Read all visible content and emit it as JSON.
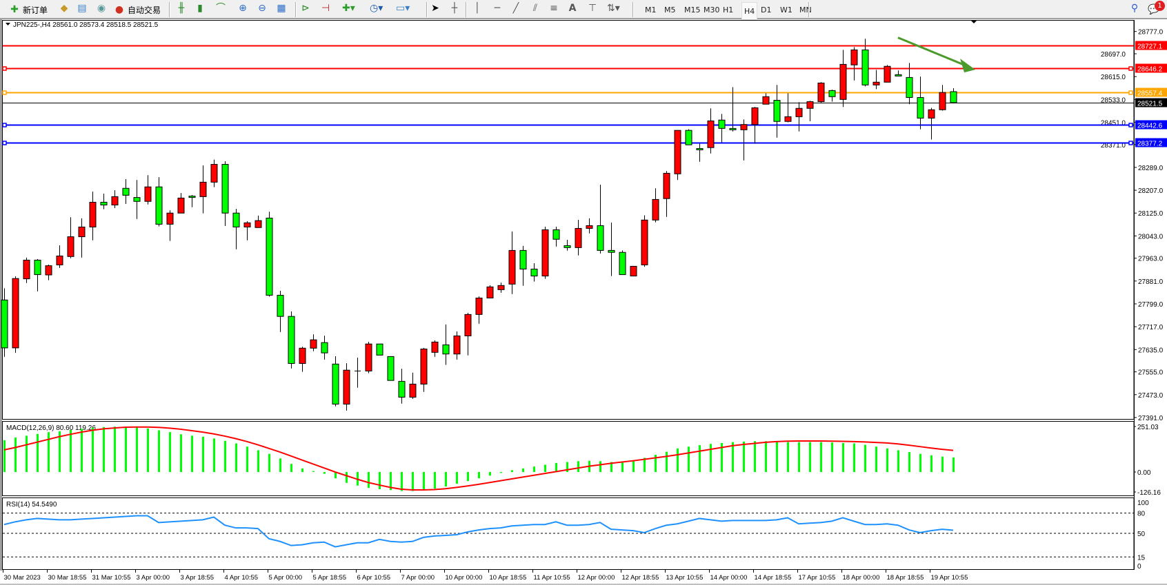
{
  "toolbar": {
    "new_order_label": "新订单",
    "auto_trading_label": "自动交易",
    "timeframes": [
      "M1",
      "M5",
      "M15",
      "M30",
      "H1",
      "H4",
      "D1",
      "W1",
      "MN"
    ],
    "active_timeframe": "H4",
    "notification_count": "1",
    "icons": [
      "new-order-icon",
      "gold-icon",
      "market-watch-icon",
      "signals-icon",
      "auto-trading-icon",
      "bar-chart-icon",
      "candlestick-icon",
      "line-chart-icon",
      "zoom-in-icon",
      "zoom-out-icon",
      "tile-windows-icon",
      "autoscroll-icon",
      "chart-shift-icon",
      "indicators-icon",
      "periods-icon",
      "templates-icon",
      "cursor-icon",
      "crosshair-icon",
      "vertical-line-icon",
      "horizontal-line-icon",
      "trendline-icon",
      "equidistant-channel-icon",
      "fibonacci-icon",
      "text-icon",
      "text-label-icon",
      "arrows-icon",
      "search-icon",
      "chat-icon"
    ]
  },
  "chart_header": "JPN225-,H4  28561.0 28573.4 28518.5 28521.5",
  "colors": {
    "bull": "#ff0000",
    "bear": "#00ff00",
    "resistance": "#ff0000",
    "pivot": "#ffa500",
    "support": "#0000ff",
    "current": "#000000",
    "macd_hist": "#00ff00",
    "macd_signal": "#ff0000",
    "rsi": "#1e90ff",
    "arrow": "#4c9a2a"
  },
  "chart_data": {
    "type": "candlestick",
    "symbol": "JPN225-",
    "timeframe": "H4",
    "ylim": [
      27391.0,
      28777.0
    ],
    "y_tick_labels": [
      "28777.0",
      "28697.0",
      "28615.0",
      "28533.0",
      "28451.0",
      "28371.0",
      "28289.0",
      "28207.0",
      "28125.0",
      "28043.0",
      "27963.0",
      "27881.0",
      "27799.0",
      "27717.0",
      "27635.0",
      "27555.0",
      "27473.0",
      "27391.0"
    ],
    "x_tick_labels": [
      {
        "bar": 0,
        "label": "30 Mar 2023"
      },
      {
        "bar": 4,
        "label": "30 Mar 18:55"
      },
      {
        "bar": 8,
        "label": "31 Mar 10:55"
      },
      {
        "bar": 12,
        "label": "3 Apr 00:00"
      },
      {
        "bar": 16,
        "label": "3 Apr 18:55"
      },
      {
        "bar": 20,
        "label": "4 Apr 10:55"
      },
      {
        "bar": 24,
        "label": "5 Apr 00:00"
      },
      {
        "bar": 28,
        "label": "5 Apr 18:55"
      },
      {
        "bar": 32,
        "label": "6 Apr 10:55"
      },
      {
        "bar": 36,
        "label": "7 Apr 00:00"
      },
      {
        "bar": 40,
        "label": "10 Apr 00:00"
      },
      {
        "bar": 44,
        "label": "10 Apr 18:55"
      },
      {
        "bar": 48,
        "label": "11 Apr 10:55"
      },
      {
        "bar": 52,
        "label": "12 Apr 00:00"
      },
      {
        "bar": 56,
        "label": "12 Apr 18:55"
      },
      {
        "bar": 60,
        "label": "13 Apr 10:55"
      },
      {
        "bar": 64,
        "label": "14 Apr 00:00"
      },
      {
        "bar": 68,
        "label": "14 Apr 18:55"
      },
      {
        "bar": 72,
        "label": "17 Apr 10:55"
      },
      {
        "bar": 76,
        "label": "18 Apr 00:00"
      },
      {
        "bar": 80,
        "label": "18 Apr 18:55"
      },
      {
        "bar": 84,
        "label": "19 Apr 10:55"
      }
    ],
    "ohlc": [
      [
        27813,
        27855,
        27609,
        27641
      ],
      [
        27641,
        27898,
        27623,
        27890
      ],
      [
        27889,
        27965,
        27874,
        27956
      ],
      [
        27956,
        27960,
        27844,
        27904
      ],
      [
        27903,
        27940,
        27884,
        27936
      ],
      [
        27939,
        28009,
        27928,
        27971
      ],
      [
        27969,
        28110,
        27963,
        28040
      ],
      [
        28040,
        28106,
        27965,
        28075
      ],
      [
        28075,
        28202,
        28027,
        28164
      ],
      [
        28164,
        28195,
        28139,
        28154
      ],
      [
        28154,
        28207,
        28143,
        28184
      ],
      [
        28214,
        28247,
        28158,
        28189
      ],
      [
        28181,
        28244,
        28104,
        28167
      ],
      [
        28167,
        28261,
        28156,
        28219
      ],
      [
        28219,
        28254,
        28077,
        28085
      ],
      [
        28085,
        28135,
        28025,
        28125
      ],
      [
        28125,
        28197,
        28125,
        28179
      ],
      [
        28186,
        28190,
        28146,
        28181
      ],
      [
        28184,
        28296,
        28124,
        28236
      ],
      [
        28236,
        28317,
        28218,
        28300
      ],
      [
        28300,
        28311,
        28079,
        28125
      ],
      [
        28125,
        28140,
        27995,
        28075
      ],
      [
        28075,
        28096,
        28027,
        28090
      ],
      [
        28073,
        28116,
        28073,
        28098
      ],
      [
        28107,
        28130,
        27825,
        27830
      ],
      [
        27830,
        27846,
        27698,
        27754
      ],
      [
        27754,
        27772,
        27567,
        27585
      ],
      [
        27585,
        27645,
        27555,
        27640
      ],
      [
        27640,
        27690,
        27629,
        27670
      ],
      [
        27660,
        27685,
        27599,
        27623
      ],
      [
        27583,
        27611,
        27431,
        27439
      ],
      [
        27439,
        27586,
        27416,
        27561
      ],
      [
        27558,
        27606,
        27498,
        27558
      ],
      [
        27558,
        27663,
        27550,
        27655
      ],
      [
        27655,
        27655,
        27615,
        27615
      ],
      [
        27610,
        27610,
        27524,
        27524
      ],
      [
        27521,
        27566,
        27441,
        27464
      ],
      [
        27464,
        27552,
        27458,
        27511
      ],
      [
        27511,
        27641,
        27483,
        27637
      ],
      [
        27625,
        27668,
        27609,
        27662
      ],
      [
        27652,
        27725,
        27580,
        27619
      ],
      [
        27619,
        27700,
        27599,
        27684
      ],
      [
        27684,
        27767,
        27614,
        27761
      ],
      [
        27761,
        27826,
        27728,
        27820
      ],
      [
        27820,
        27866,
        27820,
        27860
      ],
      [
        27850,
        27875,
        27839,
        27865
      ],
      [
        27870,
        28059,
        27834,
        27991
      ],
      [
        27991,
        28007,
        27864,
        27924
      ],
      [
        27924,
        27945,
        27879,
        27899
      ],
      [
        27899,
        28076,
        27889,
        28065
      ],
      [
        28065,
        28076,
        28005,
        28031
      ],
      [
        28008,
        28029,
        27990,
        28001
      ],
      [
        28001,
        28101,
        27973,
        28070
      ],
      [
        28070,
        28106,
        28052,
        28080
      ],
      [
        28080,
        28227,
        27980,
        27991
      ],
      [
        27991,
        28091,
        27899,
        27984
      ],
      [
        27984,
        27991,
        27904,
        27904
      ],
      [
        27899,
        27934,
        27899,
        27934
      ],
      [
        27939,
        28117,
        27932,
        28100
      ],
      [
        28100,
        28214,
        28092,
        28174
      ],
      [
        28177,
        28276,
        28111,
        28268
      ],
      [
        28266,
        28422,
        28244,
        28422
      ],
      [
        28422,
        28426,
        28370,
        28370
      ],
      [
        28357,
        28374,
        28309,
        28352
      ],
      [
        28360,
        28501,
        28339,
        28456
      ],
      [
        28459,
        28481,
        28379,
        28429
      ],
      [
        28429,
        28577,
        28418,
        28424
      ],
      [
        28424,
        28461,
        28314,
        28443
      ],
      [
        28443,
        28506,
        28374,
        28503
      ],
      [
        28516,
        28555,
        28516,
        28543
      ],
      [
        28530,
        28585,
        28396,
        28454
      ],
      [
        28454,
        28555,
        28451,
        28471
      ],
      [
        28471,
        28523,
        28418,
        28501
      ],
      [
        28501,
        28528,
        28455,
        28525
      ],
      [
        28525,
        28595,
        28521,
        28592
      ],
      [
        28565,
        28568,
        28525,
        28543
      ],
      [
        28533,
        28711,
        28506,
        28659
      ],
      [
        28657,
        28721,
        28601,
        28711
      ],
      [
        28711,
        28751,
        28580,
        28585
      ],
      [
        28585,
        28639,
        28570,
        28595
      ],
      [
        28595,
        28657,
        28595,
        28652
      ],
      [
        28622,
        28637,
        28617,
        28617
      ],
      [
        28612,
        28664,
        28516,
        28540
      ],
      [
        28540,
        28615,
        28426,
        28466
      ],
      [
        28466,
        28503,
        28389,
        28496
      ],
      [
        28496,
        28585,
        28493,
        28558
      ],
      [
        28561.0,
        28573.4,
        28518.5,
        28521.5
      ]
    ],
    "horizontal_lines": [
      {
        "price": 28727.1,
        "label": "28727.1",
        "role": "resistance"
      },
      {
        "price": 28646.2,
        "label": "28646.2",
        "role": "resistance"
      },
      {
        "price": 28557.4,
        "label": "28557.4",
        "role": "pivot"
      },
      {
        "price": 28521.5,
        "label": "28521.5",
        "role": "current"
      },
      {
        "price": 28442.6,
        "label": "28442.6",
        "role": "support"
      },
      {
        "price": 28377.2,
        "label": "28377.2",
        "role": "support"
      }
    ],
    "annotation": {
      "type": "arrow",
      "direction": "down-right",
      "from_bar": 81,
      "to_bar": 88,
      "from_price": 28755,
      "to_price": 28640
    },
    "macd": {
      "label": "MACD(12,26,9) 80.60 119.26",
      "ylim": [
        -126.16,
        251.03
      ],
      "tick_labels": [
        "251.03",
        "0.00",
        "-126.16"
      ],
      "histogram": [
        175,
        190,
        200,
        210,
        220,
        225,
        232,
        238,
        245,
        248,
        250,
        250,
        248,
        240,
        230,
        220,
        208,
        200,
        195,
        185,
        172,
        158,
        140,
        120,
        100,
        75,
        45,
        20,
        5,
        -10,
        -35,
        -60,
        -75,
        -88,
        -95,
        -100,
        -105,
        -105,
        -100,
        -92,
        -80,
        -65,
        -50,
        -35,
        -20,
        -5,
        10,
        20,
        30,
        40,
        50,
        55,
        60,
        62,
        60,
        55,
        58,
        65,
        78,
        95,
        112,
        130,
        140,
        148,
        155,
        160,
        165,
        168,
        170,
        170,
        168,
        165,
        165,
        165,
        165,
        163,
        160,
        158,
        150,
        140,
        130,
        120,
        110,
        100,
        92,
        85,
        80.6
      ],
      "signal": [
        122,
        135,
        150,
        165,
        180,
        195,
        208,
        220,
        230,
        238,
        243,
        247,
        248,
        248,
        246,
        242,
        236,
        228,
        220,
        210,
        198,
        184,
        168,
        150,
        130,
        110,
        88,
        66,
        44,
        22,
        0,
        -20,
        -40,
        -58,
        -72,
        -85,
        -95,
        -99,
        -99,
        -97,
        -92,
        -85,
        -77,
        -68,
        -58,
        -48,
        -38,
        -28,
        -18,
        -8,
        2,
        12,
        22,
        32,
        40,
        48,
        55,
        62,
        70,
        78,
        86,
        95,
        105,
        115,
        125,
        135,
        145,
        152,
        158,
        164,
        168,
        170,
        171,
        171,
        171,
        170,
        169,
        168,
        166,
        163,
        160,
        155,
        148,
        140,
        132,
        125,
        119.26
      ]
    },
    "rsi": {
      "label": "RSI(14) 54.5490",
      "ylim": [
        0,
        100
      ],
      "levels": [
        80,
        50,
        15
      ],
      "tick_labels": [
        "100",
        "80",
        "50",
        "15",
        "0"
      ],
      "values": [
        63,
        67,
        70,
        72,
        71,
        70,
        70,
        71,
        72,
        73,
        74,
        75,
        76,
        76,
        66,
        67,
        68,
        69,
        70,
        74,
        62,
        58,
        58,
        57,
        42,
        38,
        32,
        33,
        36,
        37,
        30,
        33,
        36,
        36,
        41,
        38,
        37,
        38,
        44,
        46,
        47,
        48,
        52,
        55,
        57,
        58,
        61,
        62,
        63,
        63,
        67,
        62,
        62,
        63,
        66,
        56,
        55,
        54,
        51,
        57,
        62,
        64,
        68,
        72,
        70,
        68,
        69,
        69,
        69,
        69,
        70,
        73,
        64,
        65,
        66,
        68,
        73,
        68,
        63,
        63,
        64,
        62,
        55,
        51,
        54,
        56,
        54.549
      ]
    }
  }
}
